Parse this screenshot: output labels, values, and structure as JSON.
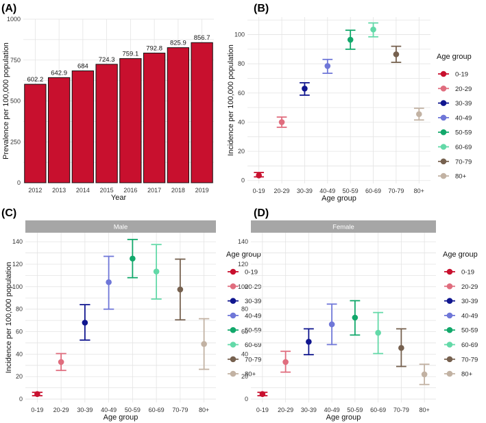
{
  "chart_data": [
    {
      "id": "A",
      "panel_label": "(A)",
      "type": "bar",
      "categories": [
        "2012",
        "2013",
        "2014",
        "2015",
        "2016",
        "2017",
        "2018",
        "2019"
      ],
      "values": [
        602.2,
        642.9,
        684,
        724.3,
        759.1,
        792.8,
        825.9,
        856.7
      ],
      "value_labels": [
        "602.2",
        "642.9",
        "684",
        "724.3",
        "759.1",
        "792.8",
        "825.9",
        "856.7"
      ],
      "xlabel": "Year",
      "ylabel": "Prevalence per 100,000 population",
      "ylim": [
        0,
        1000
      ],
      "yticks": [
        0,
        250,
        500,
        750,
        1000
      ],
      "bar_color": "#c8102e",
      "grid": true
    },
    {
      "id": "B",
      "panel_label": "(B)",
      "type": "errorbar",
      "categories": [
        "0-19",
        "20-29",
        "30-39",
        "40-49",
        "50-59",
        "60-69",
        "70-79",
        "80+"
      ],
      "estimates": [
        3.5,
        40,
        63,
        78.5,
        96.5,
        103.5,
        86.5,
        45.5
      ],
      "lower": [
        2.5,
        36.5,
        58.5,
        73.5,
        90,
        98.5,
        81,
        41.5
      ],
      "upper": [
        5.5,
        43.5,
        67,
        83,
        103,
        108,
        92,
        49.5
      ],
      "xlabel": "Age group",
      "ylabel": "Incidence per 100,000 population",
      "ylim": [
        -2,
        112
      ],
      "yticks": [
        0,
        20,
        40,
        60,
        80,
        100
      ],
      "grid": true
    },
    {
      "id": "C",
      "panel_label": "(C)",
      "type": "errorbar",
      "strip": "Male",
      "categories": [
        "0-19",
        "20-29",
        "30-39",
        "40-49",
        "50-59",
        "60-69",
        "70-79",
        "80+"
      ],
      "estimates": [
        4.5,
        33,
        68,
        104,
        125,
        113.5,
        97.5,
        49
      ],
      "lower": [
        3,
        25.5,
        52.5,
        80,
        108,
        89,
        70.5,
        26.5
      ],
      "upper": [
        6,
        40.5,
        84,
        127,
        142,
        137.5,
        124.5,
        71.5
      ],
      "xlabel": "Age group",
      "ylabel": "Incidence per 100,000 population",
      "ylim": [
        -3,
        148
      ],
      "yticks": [
        0,
        20,
        40,
        60,
        80,
        100,
        120,
        140
      ],
      "grid": true
    },
    {
      "id": "D",
      "panel_label": "(D)",
      "type": "errorbar",
      "strip": "Female",
      "categories": [
        "0-19",
        "20-29",
        "30-39",
        "40-49",
        "50-59",
        "60-69",
        "70-79",
        "80+"
      ],
      "estimates": [
        4.5,
        33,
        51,
        66.5,
        72.5,
        59,
        45.5,
        22
      ],
      "lower": [
        3,
        24,
        39.5,
        48.5,
        57,
        40.5,
        29,
        13
      ],
      "upper": [
        6,
        42.5,
        62.5,
        84.5,
        87.5,
        77,
        62.5,
        31
      ],
      "xlabel": "Age group",
      "ylabel": "",
      "ylim": [
        -3,
        148
      ],
      "yticks": [
        0,
        20,
        40,
        60,
        80,
        100,
        120,
        140
      ],
      "grid": true
    }
  ],
  "legend": {
    "title": "Age group",
    "items": [
      {
        "label": "0-19",
        "color": "#c8102e"
      },
      {
        "label": "20-29",
        "color": "#e06d7e"
      },
      {
        "label": "30-39",
        "color": "#10168f"
      },
      {
        "label": "40-49",
        "color": "#6f77d8"
      },
      {
        "label": "50-59",
        "color": "#12a86b"
      },
      {
        "label": "60-69",
        "color": "#63d9a8"
      },
      {
        "label": "70-79",
        "color": "#76614f"
      },
      {
        "label": "80+",
        "color": "#c2b2a3"
      }
    ]
  },
  "colors": {
    "panel_bg": "#ffffff",
    "grid": "#e3e3e3",
    "strip_bg": "#a6a6a6",
    "bar": "#c8102e"
  }
}
